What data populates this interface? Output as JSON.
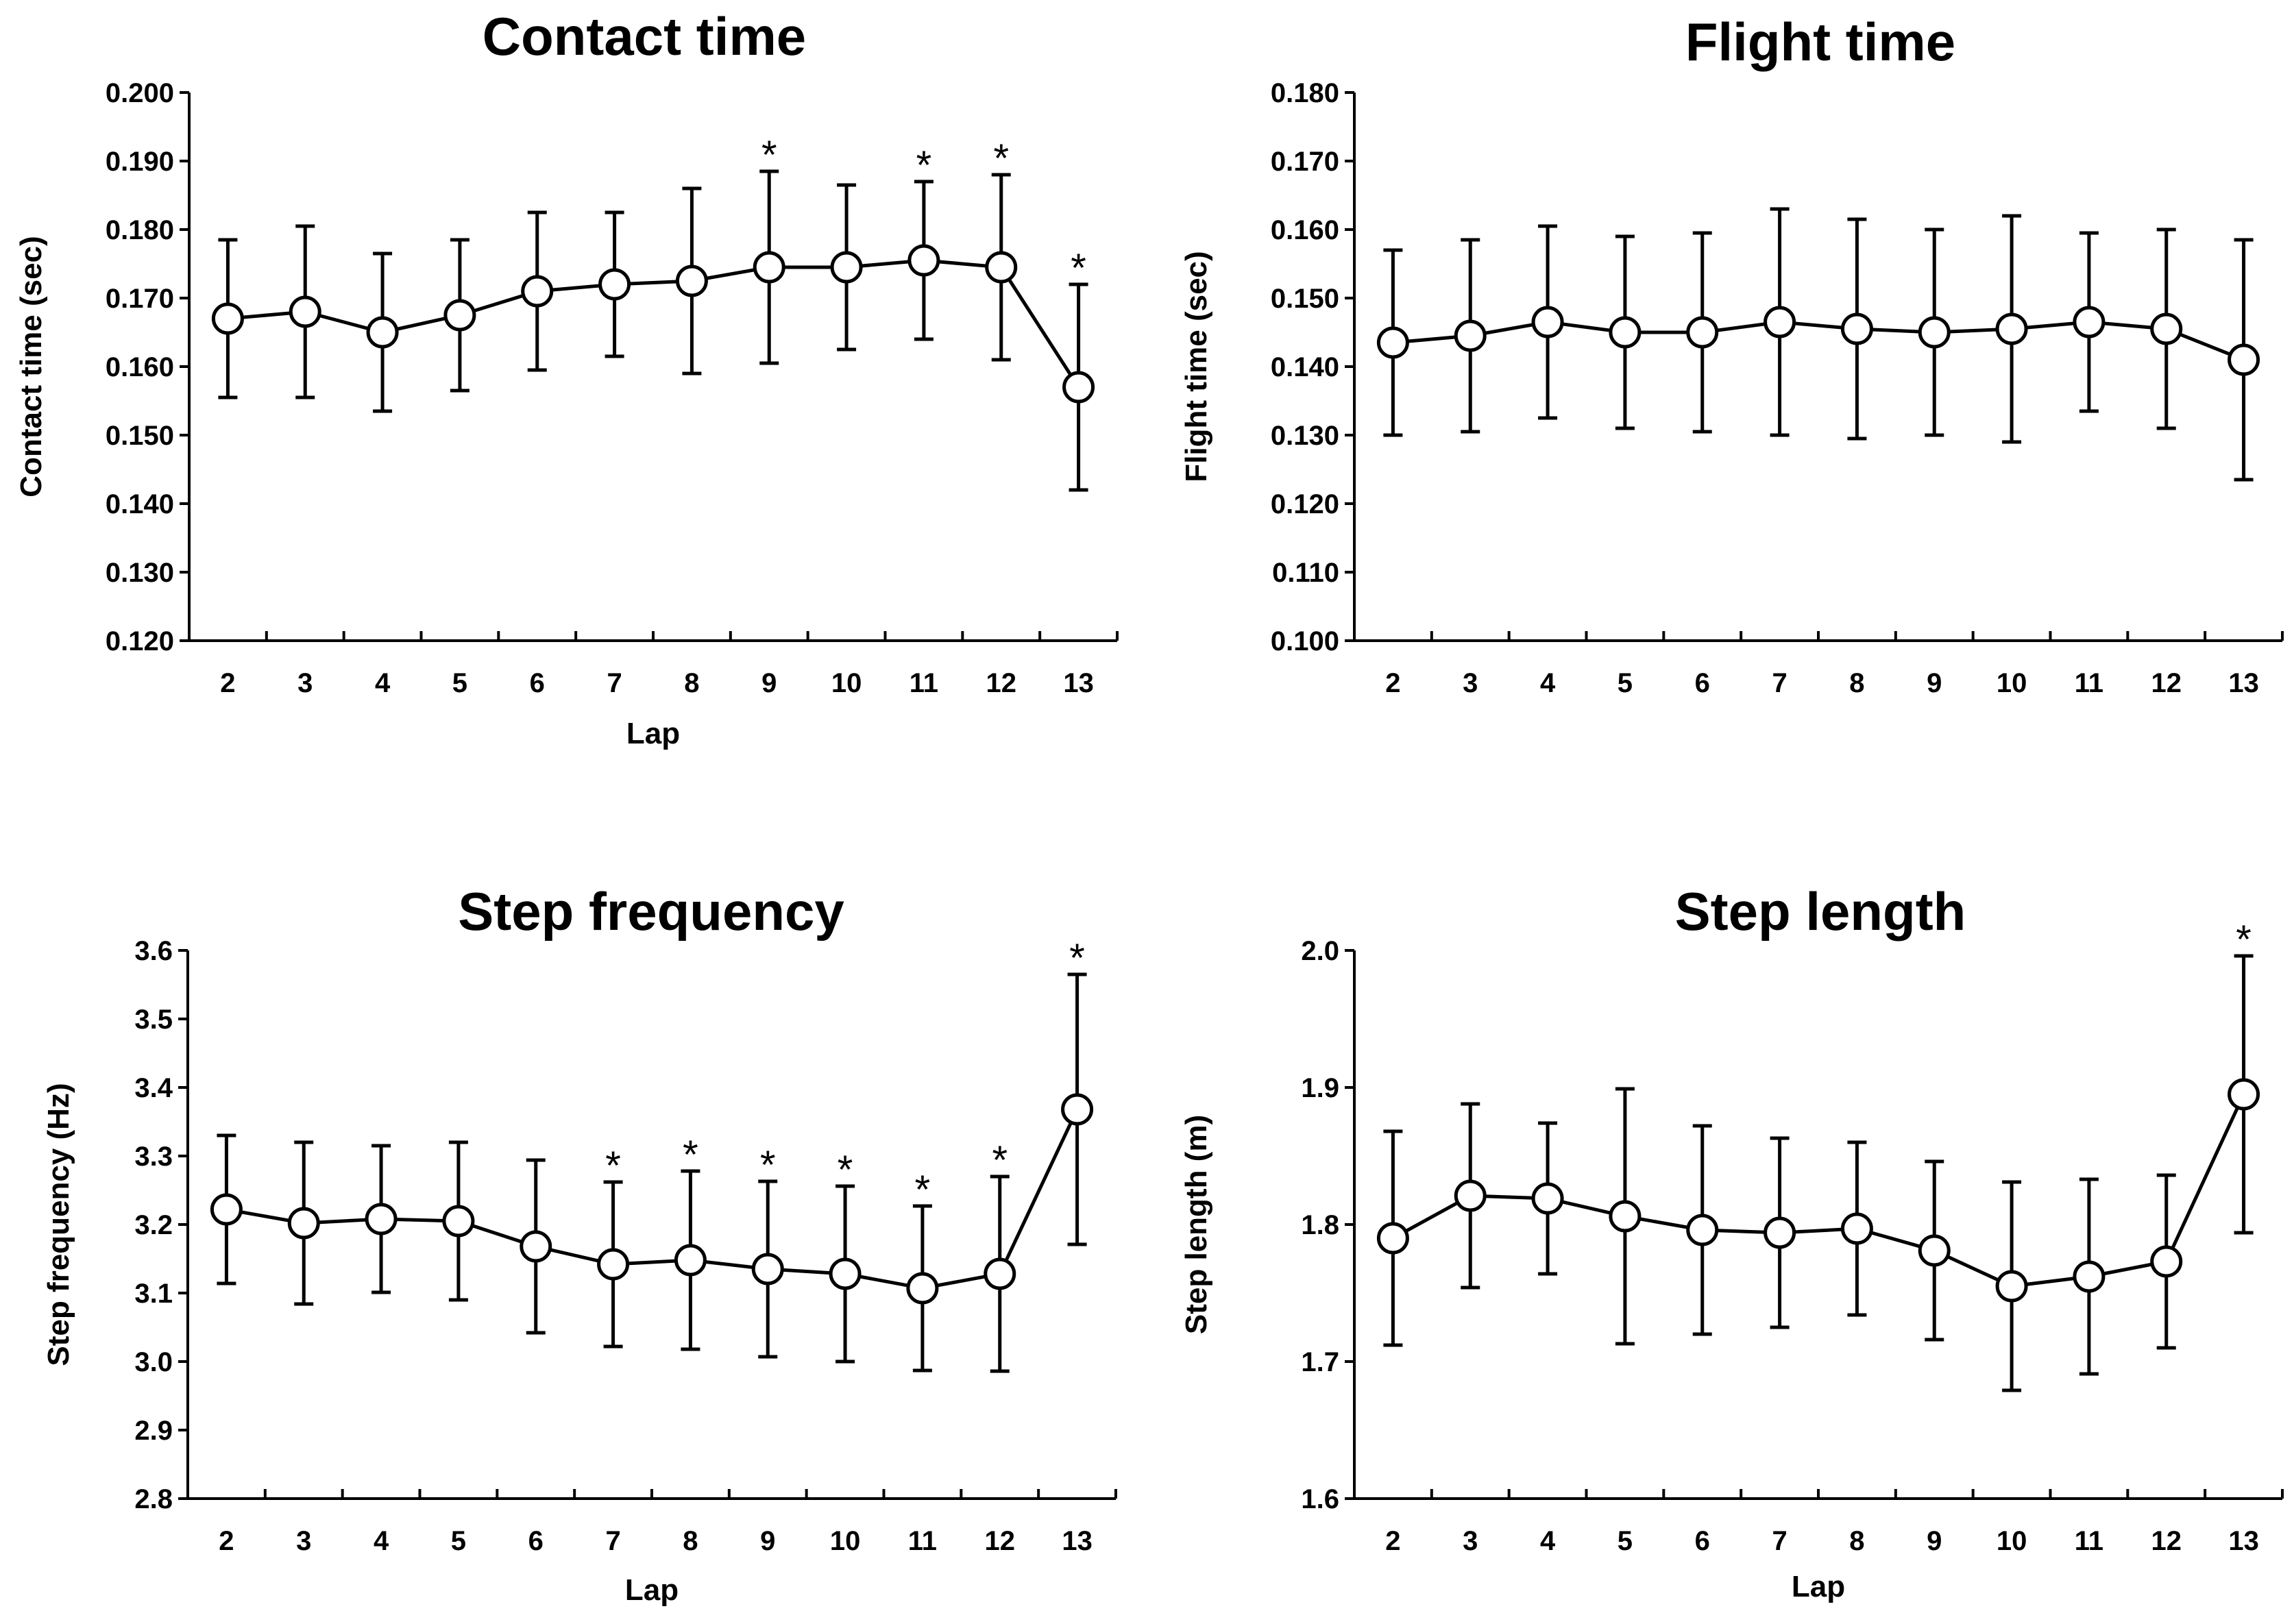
{
  "chart_data": [
    {
      "type": "line",
      "title": "Contact time",
      "xlabel": "Lap",
      "ylabel": "Contact time (sec)",
      "categories": [
        "2",
        "3",
        "4",
        "5",
        "6",
        "7",
        "8",
        "9",
        "10",
        "11",
        "12",
        "13"
      ],
      "ylim": [
        0.12,
        0.2
      ],
      "yticks": [
        "0.120",
        "0.130",
        "0.140",
        "0.150",
        "0.160",
        "0.170",
        "0.180",
        "0.190",
        "0.200"
      ],
      "series": [
        {
          "name": "Contact time",
          "values": [
            0.167,
            0.168,
            0.165,
            0.1675,
            0.171,
            0.172,
            0.1725,
            0.1745,
            0.1745,
            0.1755,
            0.1745,
            0.157
          ],
          "error": [
            0.0115,
            0.0125,
            0.0115,
            0.011,
            0.0115,
            0.0105,
            0.0135,
            0.014,
            0.012,
            0.0115,
            0.0135,
            0.015
          ],
          "significant": [
            false,
            false,
            false,
            false,
            false,
            false,
            false,
            true,
            false,
            true,
            true,
            true
          ]
        }
      ],
      "marker": "*"
    },
    {
      "type": "line",
      "title": "Flight time",
      "xlabel": "",
      "ylabel": "Flight time (sec)",
      "categories": [
        "2",
        "3",
        "4",
        "5",
        "6",
        "7",
        "8",
        "9",
        "10",
        "11",
        "12",
        "13"
      ],
      "ylim": [
        0.1,
        0.18
      ],
      "yticks": [
        "0.100",
        "0.110",
        "0.120",
        "0.130",
        "0.140",
        "0.150",
        "0.160",
        "0.170",
        "0.180"
      ],
      "series": [
        {
          "name": "Flight time",
          "values": [
            0.1435,
            0.1445,
            0.1465,
            0.145,
            0.145,
            0.1465,
            0.1455,
            0.145,
            0.1455,
            0.1465,
            0.1455,
            0.141
          ],
          "error": [
            0.0135,
            0.014,
            0.014,
            0.014,
            0.0145,
            0.0165,
            0.016,
            0.015,
            0.0165,
            0.013,
            0.0145,
            0.0175
          ],
          "significant": [
            false,
            false,
            false,
            false,
            false,
            false,
            false,
            false,
            false,
            false,
            false,
            false
          ]
        }
      ],
      "marker": "*"
    },
    {
      "type": "line",
      "title": "Step frequency",
      "xlabel": "Lap",
      "ylabel": "Step frequency (Hz)",
      "categories": [
        "2",
        "3",
        "4",
        "5",
        "6",
        "7",
        "8",
        "9",
        "10",
        "11",
        "12",
        "13"
      ],
      "ylim": [
        2.8,
        3.6
      ],
      "yticks": [
        "2.8",
        "2.9",
        "3.0",
        "3.1",
        "3.2",
        "3.3",
        "3.4",
        "3.5",
        "3.6"
      ],
      "series": [
        {
          "name": "Step frequency",
          "values": [
            3.222,
            3.202,
            3.208,
            3.205,
            3.168,
            3.142,
            3.148,
            3.135,
            3.128,
            3.107,
            3.128,
            3.368
          ],
          "error": [
            0.108,
            0.118,
            0.107,
            0.115,
            0.126,
            0.12,
            0.13,
            0.128,
            0.128,
            0.12,
            0.142,
            0.197
          ],
          "significant": [
            false,
            false,
            false,
            false,
            false,
            true,
            true,
            true,
            true,
            true,
            true,
            true
          ]
        }
      ],
      "marker": "*"
    },
    {
      "type": "line",
      "title": "Step length",
      "xlabel": "Lap",
      "ylabel": "Step length (m)",
      "categories": [
        "2",
        "3",
        "4",
        "5",
        "6",
        "7",
        "8",
        "9",
        "10",
        "11",
        "12",
        "13"
      ],
      "ylim": [
        1.6,
        2.0
      ],
      "yticks": [
        "1.6",
        "1.7",
        "1.8",
        "1.9",
        "2.0"
      ],
      "series": [
        {
          "name": "Step length",
          "values": [
            1.79,
            1.821,
            1.819,
            1.806,
            1.796,
            1.794,
            1.797,
            1.781,
            1.755,
            1.762,
            1.773,
            1.895
          ],
          "error": [
            0.078,
            0.067,
            0.055,
            0.093,
            0.076,
            0.069,
            0.063,
            0.065,
            0.076,
            0.071,
            0.063,
            0.101
          ],
          "significant": [
            false,
            false,
            false,
            false,
            false,
            false,
            false,
            false,
            false,
            false,
            false,
            true
          ]
        }
      ],
      "marker": "*"
    }
  ]
}
